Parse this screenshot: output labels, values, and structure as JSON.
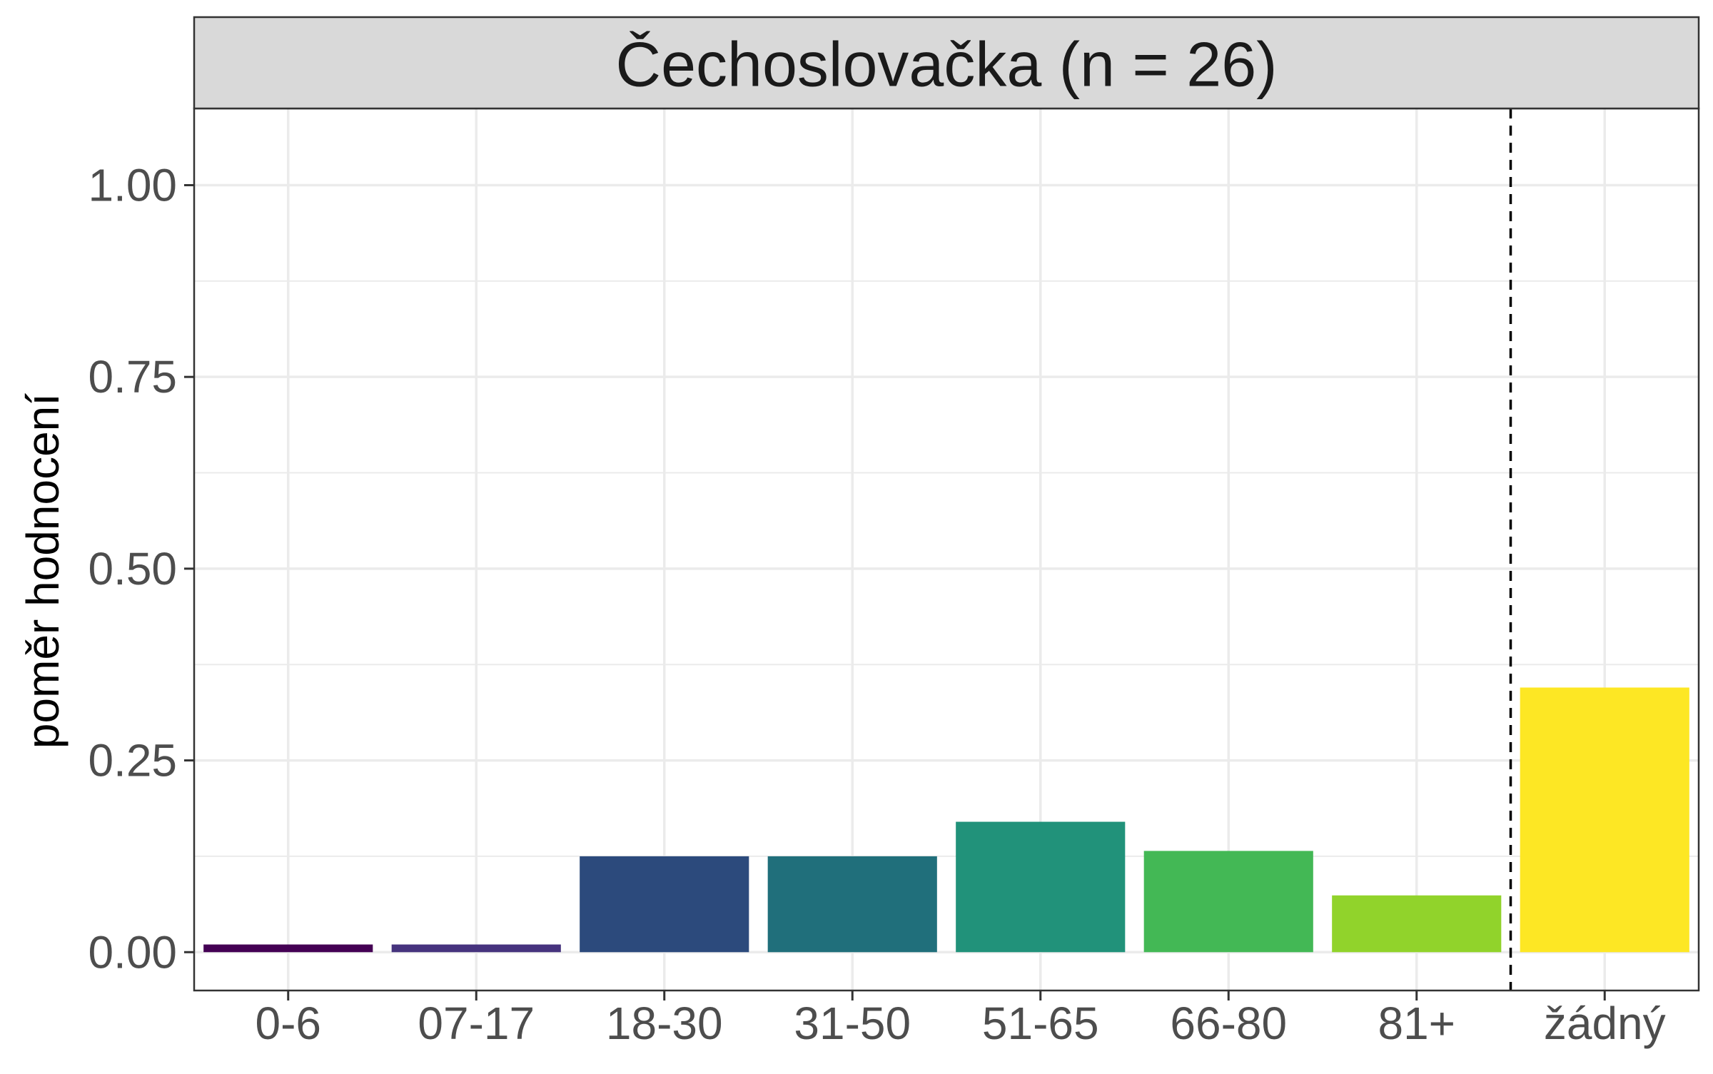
{
  "chart_data": {
    "type": "bar",
    "title": "Čechoslovačka (n = 26)",
    "xlabel": "",
    "ylabel": "poměr hodnocení",
    "categories": [
      "0-6",
      "07-17",
      "18-30",
      "31-50",
      "51-65",
      "66-80",
      "81+",
      "žádný"
    ],
    "values": [
      0.01,
      0.01,
      0.125,
      0.125,
      0.17,
      0.132,
      0.074,
      0.345
    ],
    "colors": [
      "#440154",
      "#46337E",
      "#2C4A7C",
      "#206F7B",
      "#21927A",
      "#43B855",
      "#91D32B",
      "#FDE724"
    ],
    "ylim": [
      -0.05,
      1.1
    ],
    "yticks": [
      "0.00",
      "0.25",
      "0.50",
      "0.75",
      "1.00"
    ],
    "ytick_values": [
      0,
      0.25,
      0.5,
      0.75,
      1.0
    ],
    "separator_line": {
      "style": "dashed",
      "after_category": "81+"
    },
    "grid": true,
    "legend": "none"
  }
}
